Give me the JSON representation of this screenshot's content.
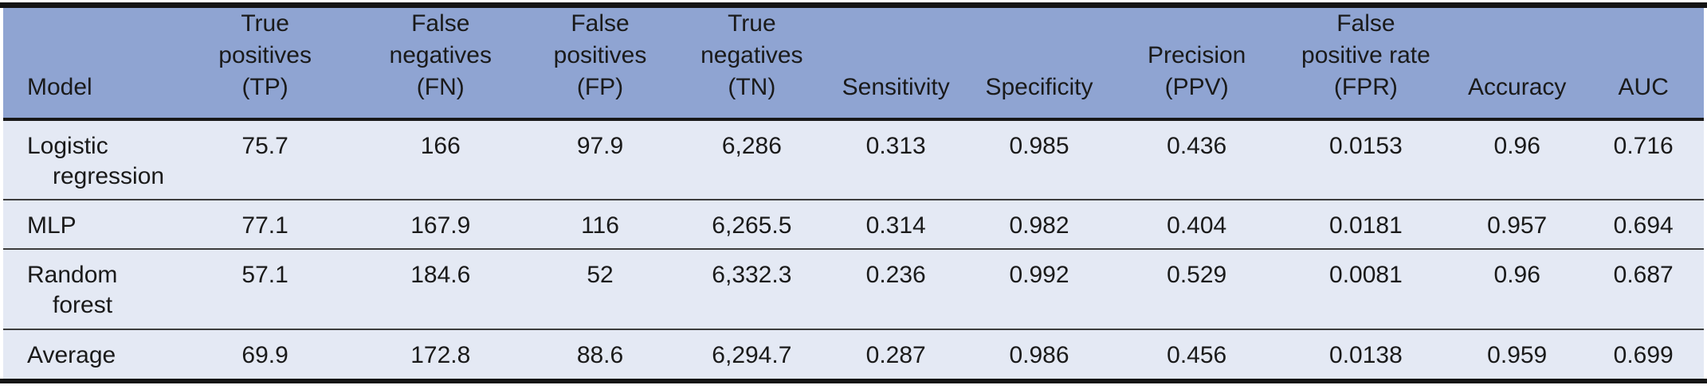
{
  "colors": {
    "header_bg": "#8fa4d2",
    "row_bg": "#e4e9f4",
    "heavy_rule": "#141414",
    "light_rule": "#3c3c3c",
    "text": "#1a1a1a"
  },
  "table": {
    "columns": [
      {
        "id": "model",
        "label": "Model"
      },
      {
        "id": "tp",
        "label": "True\npositives\n(TP)"
      },
      {
        "id": "fn",
        "label": "False\nnegatives\n(FN)"
      },
      {
        "id": "fp",
        "label": "False\npositives\n(FP)"
      },
      {
        "id": "tn",
        "label": "True\nnegatives\n(TN)"
      },
      {
        "id": "sens",
        "label": "Sensitivity"
      },
      {
        "id": "spec",
        "label": "Specificity"
      },
      {
        "id": "ppv",
        "label": "Precision\n(PPV)"
      },
      {
        "id": "fpr",
        "label": "False\npositive rate\n(FPR)"
      },
      {
        "id": "acc",
        "label": "Accuracy"
      },
      {
        "id": "auc",
        "label": "AUC"
      }
    ],
    "rows": [
      {
        "model": "Logistic regression",
        "cells": [
          "75.7",
          "166",
          "97.9",
          "6,286",
          "0.313",
          "0.985",
          "0.436",
          "0.0153",
          "0.96",
          "0.716"
        ]
      },
      {
        "model": "MLP",
        "cells": [
          "77.1",
          "167.9",
          "116",
          "6,265.5",
          "0.314",
          "0.982",
          "0.404",
          "0.0181",
          "0.957",
          "0.694"
        ]
      },
      {
        "model": "Random forest",
        "cells": [
          "57.1",
          "184.6",
          "52",
          "6,332.3",
          "0.236",
          "0.992",
          "0.529",
          "0.0081",
          "0.96",
          "0.687"
        ]
      },
      {
        "model": "Average",
        "cells": [
          "69.9",
          "172.8",
          "88.6",
          "6,294.7",
          "0.287",
          "0.986",
          "0.456",
          "0.0138",
          "0.959",
          "0.699"
        ]
      }
    ]
  }
}
